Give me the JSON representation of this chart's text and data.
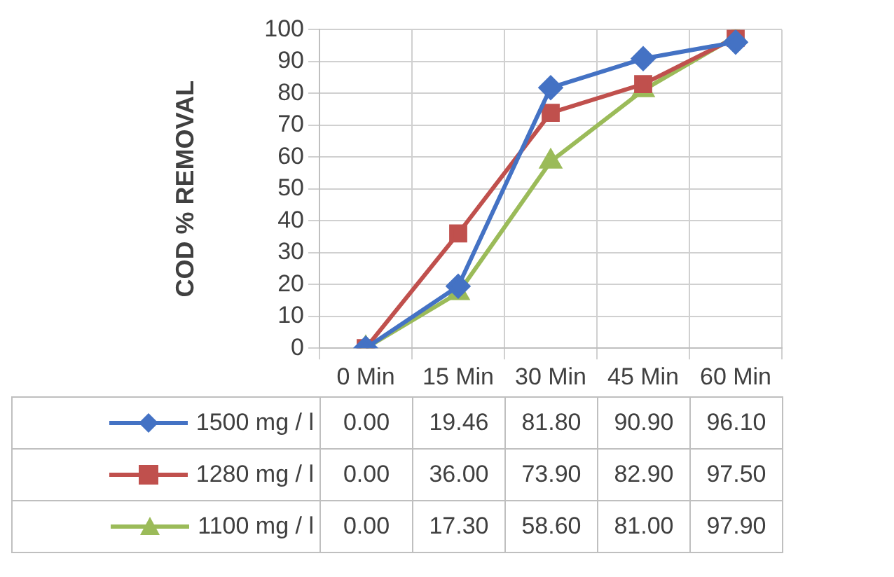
{
  "chart_data": {
    "type": "line",
    "ylabel": "COD % REMOVAL",
    "categories": [
      "0 Min",
      "15 Min",
      "30 Min",
      "45 Min",
      "60 Min"
    ],
    "ylim": [
      0,
      100
    ],
    "yticks": [
      0,
      10,
      20,
      30,
      40,
      50,
      60,
      70,
      80,
      90,
      100
    ],
    "grid": true,
    "legend": "bottom",
    "line_style": "solid",
    "series": [
      {
        "name": "1500 mg / l",
        "color": "#4472c4",
        "marker": "diamond",
        "values": [
          0,
          19.46,
          81.8,
          90.9,
          96.1
        ],
        "value_labels": [
          "0.00",
          "19.46",
          "81.80",
          "90.90",
          "96.10"
        ]
      },
      {
        "name": "1280 mg / l",
        "color": "#c0504d",
        "marker": "square",
        "values": [
          0,
          36,
          73.9,
          82.9,
          97.5
        ],
        "value_labels": [
          "0.00",
          "36.00",
          "73.90",
          "82.90",
          "97.50"
        ]
      },
      {
        "name": "1100 mg / l",
        "color": "#9bbb59",
        "marker": "triangle",
        "values": [
          0,
          17.3,
          58.6,
          81,
          97.9
        ],
        "value_labels": [
          "0.00",
          "17.30",
          "58.60",
          "81.00",
          "97.90"
        ]
      }
    ]
  }
}
